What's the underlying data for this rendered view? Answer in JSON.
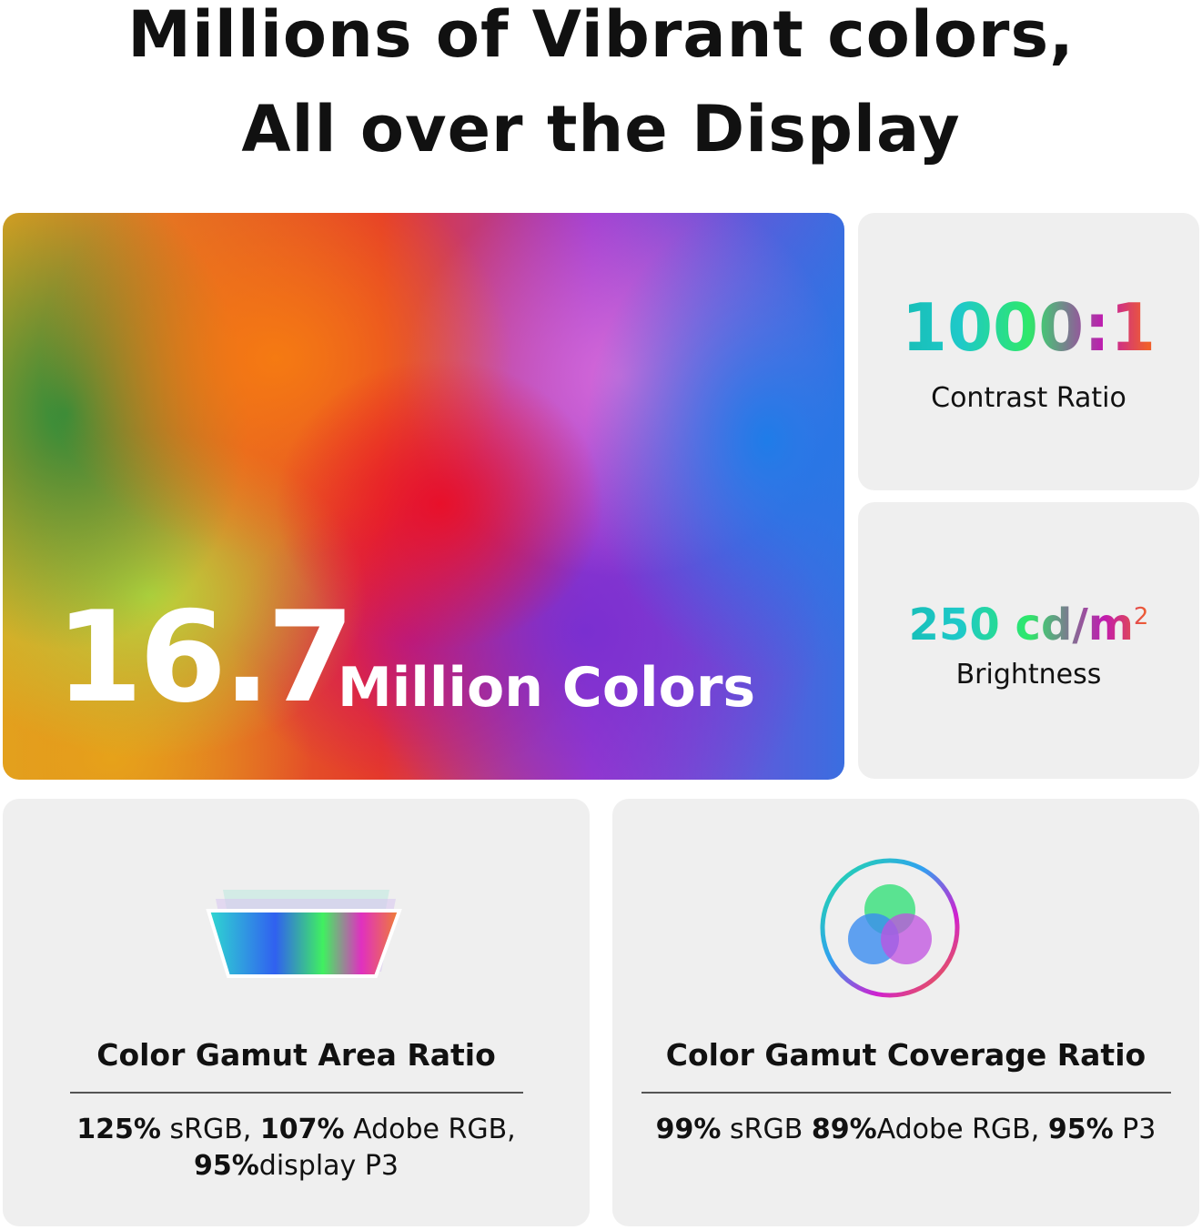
{
  "headline": {
    "line1": "Millions of Vibrant colors,",
    "line2": "All over the Display"
  },
  "hero": {
    "number": "16.7",
    "label": "Million Colors"
  },
  "contrast": {
    "value": "1000:1",
    "label": "Contrast Ratio"
  },
  "brightness": {
    "value": "250 cd/m",
    "superscript": "2",
    "label": "Brightness"
  },
  "gamut_area": {
    "icon": "layered-gamut-screen-icon",
    "title": "Color Gamut Area Ratio",
    "line1": [
      {
        "b": "125%"
      },
      {
        "t": " sRGB, "
      },
      {
        "b": "107%"
      },
      {
        "t": " Adobe RGB,"
      }
    ],
    "line2": [
      {
        "b": "95%"
      },
      {
        "t": "display P3"
      }
    ]
  },
  "gamut_coverage": {
    "icon": "rgb-venn-ring-icon",
    "title": "Color Gamut Coverage Ratio",
    "line1": [
      {
        "b": "99%"
      },
      {
        "t": " sRGB "
      },
      {
        "b": "89%"
      },
      {
        "t": "Adobe RGB, "
      },
      {
        "b": "95%"
      },
      {
        "t": " P3"
      }
    ]
  },
  "colors": {
    "card_bg": "#efefef",
    "text": "#111111"
  }
}
